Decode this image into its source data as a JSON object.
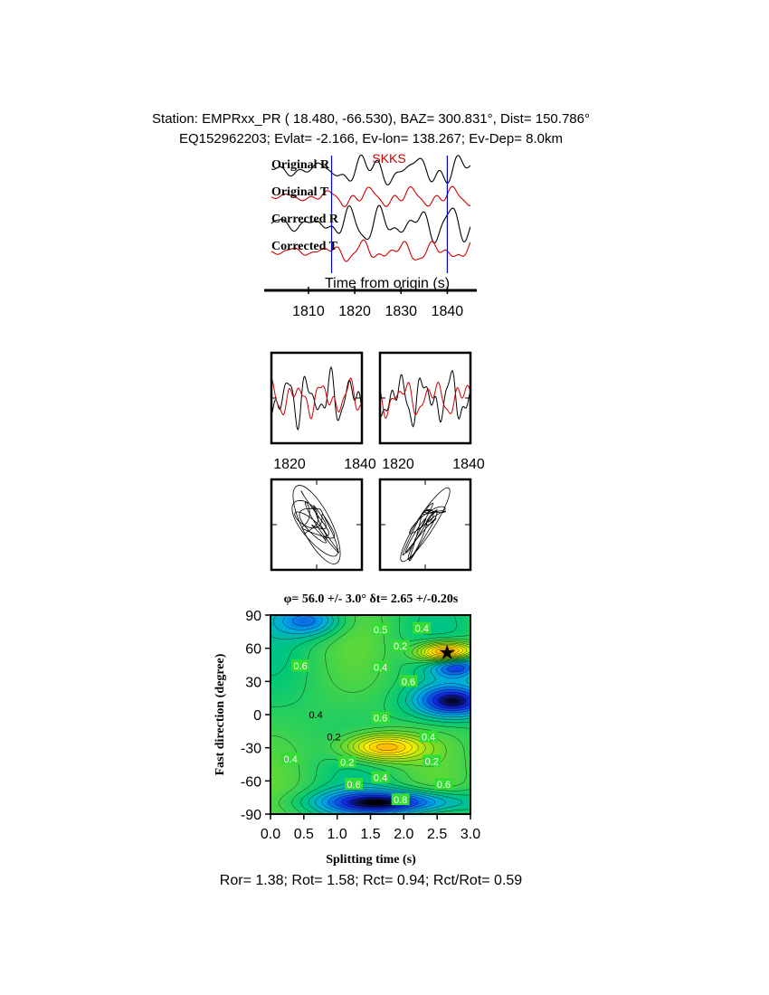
{
  "header": {
    "line1": "Station: EMPRxx_PR (  18.480,  -66.530), BAZ=  300.831°, Dist=  150.786°",
    "line2": "EQ152962203; Evlat=  -2.166, Ev-lon= 138.267; Ev-Dep=  8.0km"
  },
  "colors": {
    "radial": "#000000",
    "transverse": "#cc0000",
    "marker": "#0000cc",
    "phase": "#cc0000"
  },
  "chart_data": [
    {
      "type": "line",
      "phase_label": "SKKS",
      "trace_labels": [
        "Original R",
        "Original T",
        "Corrected R",
        "Corrected T"
      ],
      "xlabel": "Time from origin (s)",
      "x_ticks": [
        "1810",
        "1820",
        "1830",
        "1840"
      ],
      "xlim": [
        1802,
        1845
      ],
      "window_markers": [
        1815,
        1840
      ]
    },
    {
      "type": "line",
      "panels": [
        "original",
        "corrected"
      ],
      "x_ticks": [
        "1820",
        "1840"
      ],
      "xlim": [
        1815,
        1840
      ]
    },
    {
      "type": "scatter",
      "panels": [
        "original particle motion",
        "corrected particle motion"
      ]
    },
    {
      "type": "heatmap",
      "title": "φ= 56.0 +/- 3.0° δt= 2.65 +/-0.20s",
      "xlabel": "Splitting time (s)",
      "ylabel": "Fast direction (degree)",
      "xlim": [
        0,
        3
      ],
      "ylim": [
        -90,
        90
      ],
      "x_ticks": [
        "0.0",
        "0.5",
        "1.0",
        "1.5",
        "2.0",
        "2.5",
        "3.0"
      ],
      "y_ticks": [
        "90",
        "60",
        "30",
        "0",
        "-30",
        "-60",
        "-90"
      ],
      "best_fit": {
        "phi": 56.0,
        "phi_err": 3.0,
        "dt": 2.65,
        "dt_err": 0.2
      },
      "contour_labels": [
        {
          "text": "0.5",
          "x": 1.65,
          "y": 77
        },
        {
          "text": "0.4",
          "x": 2.27,
          "y": 78
        },
        {
          "text": "0.2",
          "x": 1.95,
          "y": 62
        },
        {
          "text": "0.4",
          "x": 1.65,
          "y": 43
        },
        {
          "text": "0.6",
          "x": 2.07,
          "y": 30
        },
        {
          "text": "0.6",
          "x": 0.45,
          "y": 44
        },
        {
          "text": "0.4",
          "x": 0.68,
          "y": 0
        },
        {
          "text": "0.6",
          "x": 1.65,
          "y": -3
        },
        {
          "text": "0.2",
          "x": 0.95,
          "y": -20
        },
        {
          "text": "0.4",
          "x": 2.37,
          "y": -20
        },
        {
          "text": "0.2",
          "x": 1.15,
          "y": -43
        },
        {
          "text": "0.2",
          "x": 2.42,
          "y": -42
        },
        {
          "text": "0.4",
          "x": 0.3,
          "y": -40
        },
        {
          "text": "0.4",
          "x": 1.65,
          "y": -57
        },
        {
          "text": "0.6",
          "x": 1.25,
          "y": -63
        },
        {
          "text": "0.6",
          "x": 2.6,
          "y": -63
        },
        {
          "text": "0.8",
          "x": 1.95,
          "y": -77
        }
      ]
    }
  ],
  "footer": "Ror= 1.38; Rot= 1.58; Rct= 0.94; Rct/Rot= 0.59"
}
